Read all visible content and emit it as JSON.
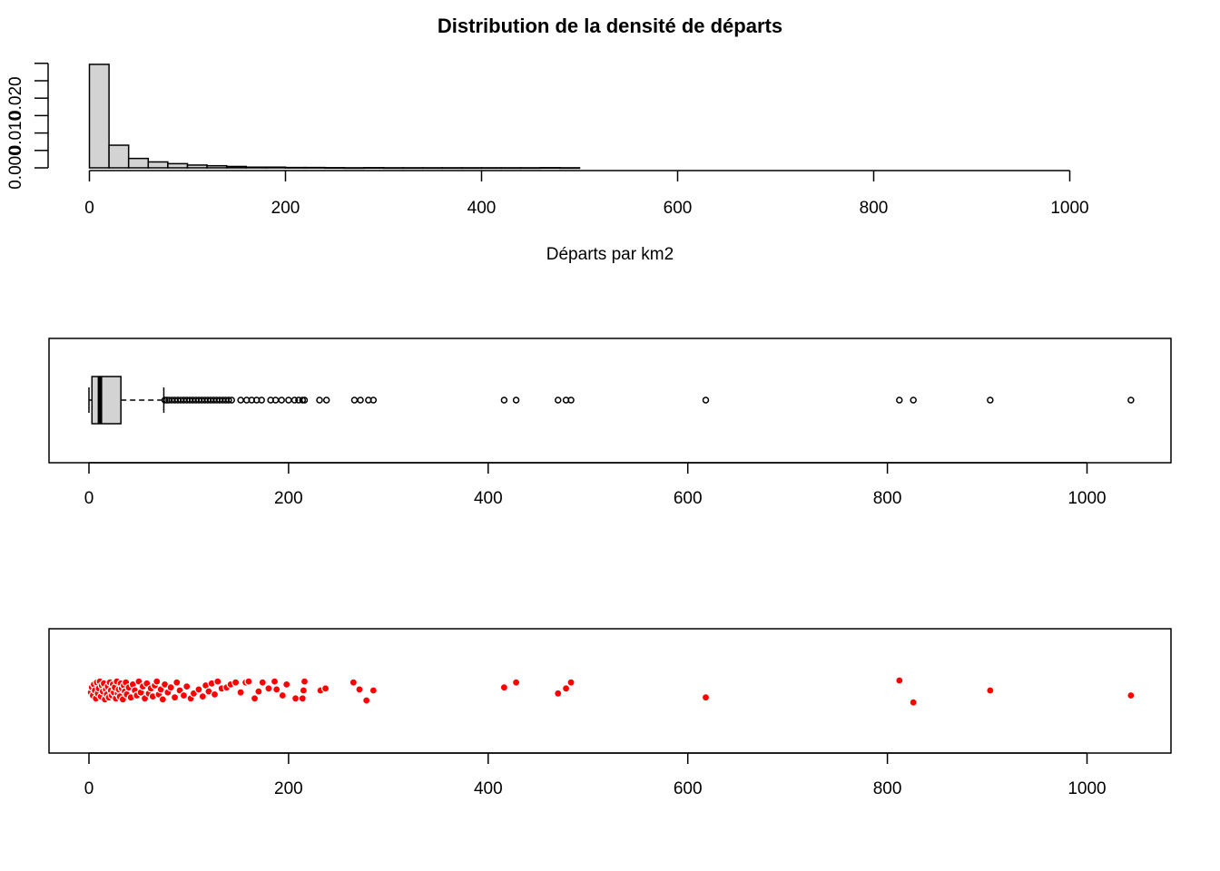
{
  "chart_data": [
    {
      "type": "bar",
      "kind": "histogram",
      "title": "Distribution de la densité de départs",
      "xlabel": "Départs par km2",
      "ylabel": "",
      "bin_width": 20,
      "bin_start": 0,
      "values": [
        0.0297,
        0.0065,
        0.0027,
        0.0017,
        0.0012,
        0.0008,
        0.0006,
        0.0004,
        0.0002,
        0.0002,
        0.0001,
        0.0001,
        5e-05,
        2e-05,
        5e-05,
        2e-05,
        2e-05,
        2e-05,
        2e-05,
        2e-05,
        2e-05,
        2e-05,
        2e-05,
        5e-05,
        2e-05
      ],
      "y_ticks": [
        0.0,
        0.005,
        0.01,
        0.015,
        0.02,
        0.025,
        0.03
      ],
      "y_tick_labels": [
        "0.000",
        "",
        "0.010",
        "",
        "0.020",
        "",
        ""
      ],
      "x_ticks": [
        0,
        200,
        400,
        600,
        800,
        1000
      ],
      "xlim": [
        0,
        1060
      ]
    },
    {
      "type": "boxplot",
      "orientation": "horizontal",
      "min": 0,
      "q1": 3,
      "median": 11,
      "q3": 32,
      "whisker_high": 75,
      "outliers": [
        76,
        78,
        80,
        83,
        86,
        89,
        92,
        95,
        98,
        101,
        104,
        107,
        110,
        113,
        116,
        119,
        122,
        125,
        128,
        131,
        134,
        137,
        140,
        143,
        152,
        158,
        163,
        168,
        173,
        182,
        187,
        193,
        200,
        206,
        210,
        214,
        216,
        231,
        238,
        266,
        272,
        280,
        285,
        416,
        428,
        470,
        478,
        483,
        618,
        812,
        826,
        903,
        1044
      ],
      "x_ticks": [
        0,
        200,
        400,
        600,
        800,
        1000
      ]
    },
    {
      "type": "scatter",
      "kind": "stripchart-jitter",
      "color": "#ff0000",
      "x_ticks": [
        0,
        200,
        400,
        600,
        800,
        1000
      ],
      "points": [
        {
          "x": 2,
          "j": -0.2
        },
        {
          "x": 3,
          "j": 0.3
        },
        {
          "x": 4,
          "j": -0.5
        },
        {
          "x": 5,
          "j": 0.6
        },
        {
          "x": 6,
          "j": 0.0
        },
        {
          "x": 7,
          "j": -0.8
        },
        {
          "x": 8,
          "j": 0.8
        },
        {
          "x": 9,
          "j": -0.3
        },
        {
          "x": 10,
          "j": 0.2
        },
        {
          "x": 11,
          "j": 0.9
        },
        {
          "x": 12,
          "j": -0.6
        },
        {
          "x": 13,
          "j": 0.5
        },
        {
          "x": 14,
          "j": -0.1
        },
        {
          "x": 15,
          "j": 0.7
        },
        {
          "x": 16,
          "j": -0.9
        },
        {
          "x": 17,
          "j": 0.1
        },
        {
          "x": 18,
          "j": -0.4
        },
        {
          "x": 19,
          "j": 0.4
        },
        {
          "x": 20,
          "j": -0.7
        },
        {
          "x": 21,
          "j": 0.8
        },
        {
          "x": 22,
          "j": 0.0
        },
        {
          "x": 23,
          "j": -0.5
        },
        {
          "x": 24,
          "j": 0.6
        },
        {
          "x": 25,
          "j": -0.2
        },
        {
          "x": 26,
          "j": 0.3
        },
        {
          "x": 27,
          "j": -0.8
        },
        {
          "x": 28,
          "j": 0.9
        },
        {
          "x": 29,
          "j": -0.3
        },
        {
          "x": 30,
          "j": 0.1
        },
        {
          "x": 31,
          "j": -0.6
        },
        {
          "x": 32,
          "j": 0.7
        },
        {
          "x": 33,
          "j": 0.2
        },
        {
          "x": 34,
          "j": -0.9
        },
        {
          "x": 35,
          "j": 0.5
        },
        {
          "x": 36,
          "j": -0.1
        },
        {
          "x": 37,
          "j": 0.8
        },
        {
          "x": 38,
          "j": -0.4
        },
        {
          "x": 40,
          "j": 0.3
        },
        {
          "x": 42,
          "j": -0.7
        },
        {
          "x": 44,
          "j": 0.6
        },
        {
          "x": 46,
          "j": 0.0
        },
        {
          "x": 48,
          "j": -0.5
        },
        {
          "x": 50,
          "j": 0.9
        },
        {
          "x": 52,
          "j": -0.2
        },
        {
          "x": 54,
          "j": 0.4
        },
        {
          "x": 56,
          "j": -0.8
        },
        {
          "x": 58,
          "j": 0.7
        },
        {
          "x": 60,
          "j": -0.3
        },
        {
          "x": 62,
          "j": 0.2
        },
        {
          "x": 64,
          "j": -0.6
        },
        {
          "x": 66,
          "j": 0.5
        },
        {
          "x": 68,
          "j": 0.9
        },
        {
          "x": 70,
          "j": -0.4
        },
        {
          "x": 72,
          "j": 0.1
        },
        {
          "x": 74,
          "j": -0.9
        },
        {
          "x": 76,
          "j": 0.6
        },
        {
          "x": 79,
          "j": -0.2
        },
        {
          "x": 82,
          "j": 0.3
        },
        {
          "x": 86,
          "j": -0.7
        },
        {
          "x": 88,
          "j": 0.8
        },
        {
          "x": 91,
          "j": 0.0
        },
        {
          "x": 95,
          "j": -0.5
        },
        {
          "x": 98,
          "j": 0.4
        },
        {
          "x": 102,
          "j": -0.8
        },
        {
          "x": 105,
          "j": -0.3
        },
        {
          "x": 110,
          "j": 0.1
        },
        {
          "x": 114,
          "j": -0.6
        },
        {
          "x": 117,
          "j": 0.5
        },
        {
          "x": 120,
          "j": -0.1
        },
        {
          "x": 123,
          "j": 0.7
        },
        {
          "x": 126,
          "j": -0.4
        },
        {
          "x": 129,
          "j": 0.9
        },
        {
          "x": 133,
          "j": 0.2
        },
        {
          "x": 138,
          "j": 0.3
        },
        {
          "x": 142,
          "j": 0.6
        },
        {
          "x": 147,
          "j": 0.8
        },
        {
          "x": 152,
          "j": -0.2
        },
        {
          "x": 157,
          "j": 0.8
        },
        {
          "x": 160,
          "j": 0.9
        },
        {
          "x": 166,
          "j": -0.8
        },
        {
          "x": 170,
          "j": -0.1
        },
        {
          "x": 174,
          "j": 0.8
        },
        {
          "x": 180,
          "j": 0.2
        },
        {
          "x": 186,
          "j": 0.9
        },
        {
          "x": 188,
          "j": 0.1
        },
        {
          "x": 194,
          "j": -0.5
        },
        {
          "x": 198,
          "j": 0.6
        },
        {
          "x": 207,
          "j": -0.8
        },
        {
          "x": 214,
          "j": -0.8
        },
        {
          "x": 215,
          "j": 0.0
        },
        {
          "x": 216,
          "j": 0.9
        },
        {
          "x": 232,
          "j": 0.0
        },
        {
          "x": 237,
          "j": 0.2
        },
        {
          "x": 265,
          "j": 0.8
        },
        {
          "x": 271,
          "j": 0.1
        },
        {
          "x": 278,
          "j": -1.0
        },
        {
          "x": 285,
          "j": 0.0
        },
        {
          "x": 416,
          "j": 0.3
        },
        {
          "x": 428,
          "j": 0.8
        },
        {
          "x": 470,
          "j": -0.3
        },
        {
          "x": 478,
          "j": 0.2
        },
        {
          "x": 483,
          "j": 0.8
        },
        {
          "x": 618,
          "j": -0.7
        },
        {
          "x": 812,
          "j": 1.0
        },
        {
          "x": 826,
          "j": -1.2
        },
        {
          "x": 903,
          "j": 0.0
        },
        {
          "x": 1044,
          "j": -0.5
        }
      ]
    }
  ]
}
